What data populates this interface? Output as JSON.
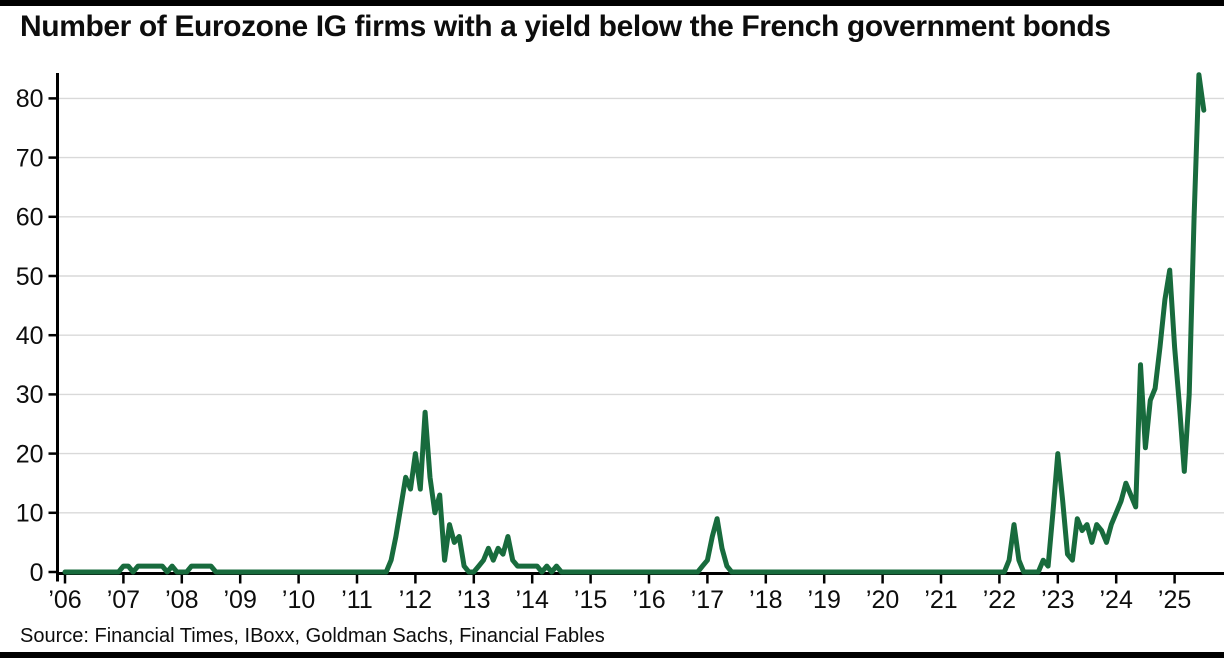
{
  "page": {
    "title": "Number of Eurozone IG firms with a yield below the French government bonds",
    "source": "Source: Financial Times, IBoxx, Goldman Sachs, Financial Fables"
  },
  "colors": {
    "line": "#186b3d",
    "grid": "#d9d9d9",
    "axis": "#000000",
    "text": "#0d0d0d",
    "top_bottom_bars": "#000000",
    "background": "#ffffff"
  },
  "chart_data": {
    "type": "line",
    "title": "Number of Eurozone IG firms with a yield below the French government bonds",
    "grid": "horizontal",
    "legend": "none",
    "x_axis": {
      "start": "2006-01",
      "frequency": "monthly",
      "tick_labels": [
        "’06",
        "’07",
        "’08",
        "’09",
        "’10",
        "’11",
        "’12",
        "’13",
        "’14",
        "’15",
        "’16",
        "’17",
        "’18",
        "’19",
        "’20",
        "’21",
        "’22",
        "’23",
        "’24",
        "’25"
      ]
    },
    "y_axis": {
      "ticks": [
        0,
        10,
        20,
        30,
        40,
        50,
        60,
        70,
        80
      ],
      "range": [
        0,
        85
      ]
    },
    "series": [
      {
        "name": "Eurozone IG firms with a yield below French government bonds",
        "values_by_year": {
          "2006": [
            0,
            0,
            0,
            0,
            0,
            0,
            0,
            0,
            0,
            0,
            0,
            0
          ],
          "2007": [
            1,
            1,
            0,
            1,
            1,
            1,
            1,
            1,
            1,
            0,
            1,
            0
          ],
          "2008": [
            0,
            0,
            1,
            1,
            1,
            1,
            1,
            0,
            0,
            0,
            0,
            0
          ],
          "2009": [
            0,
            0,
            0,
            0,
            0,
            0,
            0,
            0,
            0,
            0,
            0,
            0
          ],
          "2010": [
            0,
            0,
            0,
            0,
            0,
            0,
            0,
            0,
            0,
            0,
            0,
            0
          ],
          "2011": [
            0,
            0,
            0,
            0,
            0,
            0,
            0,
            2,
            6,
            11,
            16,
            14
          ],
          "2012": [
            20,
            14,
            27,
            16,
            10,
            13,
            2,
            8,
            5,
            6,
            1,
            0
          ],
          "2013": [
            0,
            1,
            2,
            4,
            2,
            4,
            3,
            6,
            2,
            1,
            1,
            1
          ],
          "2014": [
            1,
            1,
            0,
            1,
            0,
            1,
            0,
            0,
            0,
            0,
            0,
            0
          ],
          "2015": [
            0,
            0,
            0,
            0,
            0,
            0,
            0,
            0,
            0,
            0,
            0,
            0
          ],
          "2016": [
            0,
            0,
            0,
            0,
            0,
            0,
            0,
            0,
            0,
            0,
            0,
            1
          ],
          "2017": [
            2,
            6,
            9,
            4,
            1,
            0,
            0,
            0,
            0,
            0,
            0,
            0
          ],
          "2018": [
            0,
            0,
            0,
            0,
            0,
            0,
            0,
            0,
            0,
            0,
            0,
            0
          ],
          "2019": [
            0,
            0,
            0,
            0,
            0,
            0,
            0,
            0,
            0,
            0,
            0,
            0
          ],
          "2020": [
            0,
            0,
            0,
            0,
            0,
            0,
            0,
            0,
            0,
            0,
            0,
            0
          ],
          "2021": [
            0,
            0,
            0,
            0,
            0,
            0,
            0,
            0,
            0,
            0,
            0,
            0
          ],
          "2022": [
            0,
            0,
            2,
            8,
            2,
            0,
            0,
            0,
            0,
            2,
            1,
            10
          ],
          "2023": [
            20,
            12,
            3,
            2,
            9,
            7,
            8,
            5,
            8,
            7,
            5,
            8
          ],
          "2024": [
            10,
            12,
            15,
            13,
            11,
            35,
            21,
            29,
            31,
            38,
            46,
            51
          ],
          "2025": [
            38,
            28,
            17,
            30,
            60,
            84,
            78
          ]
        }
      }
    ]
  }
}
